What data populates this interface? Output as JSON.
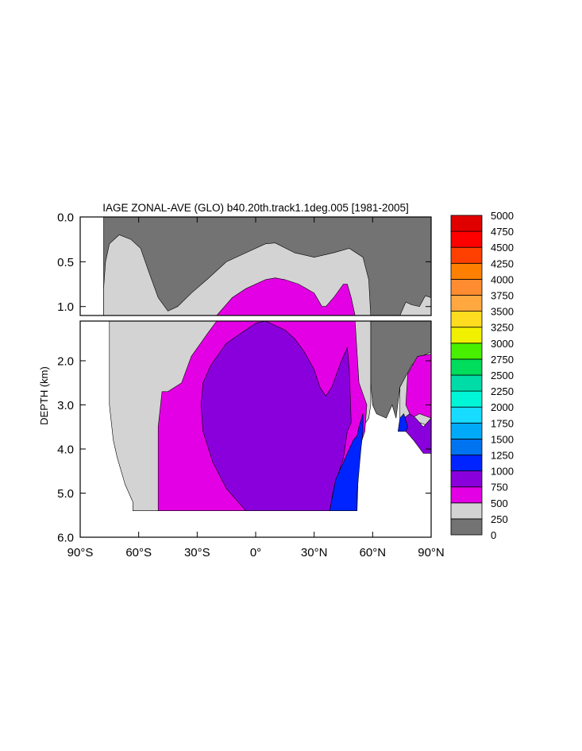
{
  "chart_data": {
    "type": "heatmap",
    "title": "IAGE ZONAL-AVE (GLO) b40.20th.track1.1deg.005 [1981-2005]",
    "ylabel": "DEPTH (km)",
    "xlabel": "",
    "xlim": [
      -90,
      90
    ],
    "ylim_upper_panel": [
      0.0,
      1.1
    ],
    "ylim_lower_panel": [
      1.1,
      6.0
    ],
    "x_ticks": [
      {
        "value": -90,
        "label": "90°S"
      },
      {
        "value": -60,
        "label": "60°S"
      },
      {
        "value": -30,
        "label": "30°S"
      },
      {
        "value": 0,
        "label": "0°"
      },
      {
        "value": 30,
        "label": "30°N"
      },
      {
        "value": 60,
        "label": "60°N"
      },
      {
        "value": 90,
        "label": "90°N"
      }
    ],
    "y_ticks_upper": [
      {
        "value": 0.0,
        "label": "0.0"
      },
      {
        "value": 0.5,
        "label": "0.5"
      },
      {
        "value": 1.0,
        "label": "1.0"
      }
    ],
    "y_ticks_lower": [
      {
        "value": 2.0,
        "label": "2.0"
      },
      {
        "value": 3.0,
        "label": "3.0"
      },
      {
        "value": 4.0,
        "label": "4.0"
      },
      {
        "value": 5.0,
        "label": "5.0"
      },
      {
        "value": 6.0,
        "label": "6.0"
      }
    ],
    "colorbar": {
      "levels": [
        "0",
        "250",
        "500",
        "750",
        "1000",
        "1250",
        "1500",
        "1750",
        "2000",
        "2250",
        "2500",
        "2750",
        "3000",
        "3250",
        "3500",
        "3750",
        "4000",
        "4250",
        "4500",
        "4750",
        "5000"
      ],
      "colors": [
        "#737373",
        "#d3d3d3",
        "#e400e4",
        "#8a00dc",
        "#0024ff",
        "#0074f0",
        "#00aaf8",
        "#18dcff",
        "#00f6d6",
        "#00dca8",
        "#00dc5c",
        "#48f000",
        "#f0f000",
        "#ffdc20",
        "#ffa840",
        "#ff8c30",
        "#ff8000",
        "#ff4000",
        "#ff0000",
        "#e00000"
      ]
    },
    "regions_upper": [
      {
        "min": 0,
        "color_index": 0,
        "points": [
          [
            -78,
            0
          ],
          [
            90,
            0
          ],
          [
            90,
            1.1
          ],
          [
            -78,
            1.1
          ]
        ]
      },
      {
        "min": 250,
        "color_index": 1,
        "points": [
          [
            -78,
            0.8
          ],
          [
            -77,
            0.5
          ],
          [
            -75,
            0.3
          ],
          [
            -70,
            0.2
          ],
          [
            -64,
            0.25
          ],
          [
            -59,
            0.35
          ],
          [
            -55,
            0.6
          ],
          [
            -50,
            0.9
          ],
          [
            -45,
            1.05
          ],
          [
            -40,
            1.0
          ],
          [
            -33,
            0.85
          ],
          [
            -25,
            0.7
          ],
          [
            -15,
            0.5
          ],
          [
            -5,
            0.4
          ],
          [
            5,
            0.3
          ],
          [
            10,
            0.29
          ],
          [
            20,
            0.4
          ],
          [
            30,
            0.45
          ],
          [
            40,
            0.4
          ],
          [
            48,
            0.35
          ],
          [
            55,
            0.45
          ],
          [
            58,
            0.7
          ],
          [
            59,
            1.1
          ],
          [
            -78,
            1.1
          ]
        ]
      },
      {
        "min": 250,
        "color_index": 1,
        "points": [
          [
            74,
            1.1
          ],
          [
            77,
            0.95
          ],
          [
            80,
            0.98
          ],
          [
            84,
            1.0
          ],
          [
            87,
            0.88
          ],
          [
            90,
            0.9
          ],
          [
            90,
            1.1
          ]
        ]
      },
      {
        "min": 500,
        "color_index": 2,
        "points": [
          [
            -20,
            1.1
          ],
          [
            -12,
            0.9
          ],
          [
            -5,
            0.8
          ],
          [
            5,
            0.7
          ],
          [
            10,
            0.68
          ],
          [
            15,
            0.7
          ],
          [
            22,
            0.75
          ],
          [
            30,
            0.85
          ],
          [
            34,
            1.0
          ],
          [
            36,
            1.0
          ],
          [
            40,
            0.9
          ],
          [
            45,
            0.75
          ],
          [
            47,
            0.75
          ],
          [
            49,
            0.9
          ],
          [
            51,
            1.1
          ]
        ]
      }
    ],
    "regions_lower": [
      {
        "min": 0,
        "color_index": 0,
        "points": [
          [
            59,
            1.1
          ],
          [
            90,
            1.1
          ],
          [
            90,
            2.0
          ],
          [
            85,
            2.0
          ],
          [
            80,
            2.3
          ],
          [
            74,
            2.6
          ],
          [
            72,
            3.3
          ],
          [
            70,
            3.0
          ],
          [
            67,
            3.3
          ],
          [
            62,
            3.2
          ],
          [
            60,
            3.0
          ],
          [
            59,
            2.5
          ]
        ]
      },
      {
        "min": 250,
        "color_index": 1,
        "points": [
          [
            -75,
            1.1
          ],
          [
            59,
            1.1
          ],
          [
            59,
            3.0
          ],
          [
            58,
            3.3
          ],
          [
            55,
            3.5
          ],
          [
            52,
            4.0
          ],
          [
            52,
            5.4
          ],
          [
            -63,
            5.4
          ],
          [
            -63,
            5.2
          ],
          [
            -65,
            5.0
          ],
          [
            -67,
            4.8
          ],
          [
            -69,
            4.5
          ],
          [
            -71,
            4.2
          ],
          [
            -73,
            3.8
          ],
          [
            -75,
            3.0
          ]
        ]
      },
      {
        "min": 250,
        "color_index": 1,
        "points": [
          [
            74,
            2.6
          ],
          [
            80,
            2.1
          ],
          [
            85,
            1.9
          ],
          [
            90,
            1.8
          ],
          [
            90,
            3.5
          ],
          [
            84,
            3.4
          ],
          [
            78,
            3.5
          ],
          [
            74,
            3.3
          ]
        ]
      },
      {
        "min": 500,
        "color_index": 2,
        "points": [
          [
            -50,
            5.4
          ],
          [
            -50,
            3.5
          ],
          [
            -48,
            2.7
          ],
          [
            -45,
            2.7
          ],
          [
            -38,
            2.5
          ],
          [
            -33,
            1.9
          ],
          [
            -25,
            1.4
          ],
          [
            -20,
            1.1
          ],
          [
            51,
            1.1
          ],
          [
            53,
            2.5
          ],
          [
            57,
            3.0
          ],
          [
            56,
            3.6
          ],
          [
            53,
            4.0
          ],
          [
            52,
            5.4
          ]
        ]
      },
      {
        "min": 500,
        "color_index": 2,
        "points": [
          [
            78,
            2.3
          ],
          [
            83,
            1.9
          ],
          [
            90,
            1.85
          ],
          [
            90,
            3.3
          ],
          [
            84,
            3.2
          ],
          [
            80,
            3.3
          ],
          [
            77,
            3.0
          ]
        ]
      },
      {
        "min": 750,
        "color_index": 3,
        "points": [
          [
            -27,
            2.5
          ],
          [
            -23,
            2.1
          ],
          [
            -15,
            1.6
          ],
          [
            -5,
            1.3
          ],
          [
            0,
            1.15
          ],
          [
            5,
            1.1
          ],
          [
            10,
            1.2
          ],
          [
            15,
            1.3
          ],
          [
            20,
            1.5
          ],
          [
            25,
            1.8
          ],
          [
            30,
            2.2
          ],
          [
            33,
            2.6
          ],
          [
            36,
            2.8
          ],
          [
            39,
            2.6
          ],
          [
            44,
            2.0
          ],
          [
            47,
            1.7
          ],
          [
            48,
            2.2
          ],
          [
            49,
            3.4
          ],
          [
            47,
            3.6
          ],
          [
            45,
            4.2
          ],
          [
            40,
            4.9
          ],
          [
            38,
            5.4
          ],
          [
            -5,
            5.4
          ],
          [
            -15,
            4.9
          ],
          [
            -22,
            4.3
          ],
          [
            -27,
            3.6
          ],
          [
            -28,
            3.0
          ]
        ]
      },
      {
        "min": 750,
        "color_index": 3,
        "points": [
          [
            76,
            3.3
          ],
          [
            79,
            3.2
          ],
          [
            82,
            3.3
          ],
          [
            86,
            3.5
          ],
          [
            90,
            3.3
          ],
          [
            90,
            4.1
          ],
          [
            86,
            4.1
          ],
          [
            81,
            3.8
          ],
          [
            77,
            3.6
          ]
        ]
      },
      {
        "min": 1000,
        "color_index": 4,
        "points": [
          [
            38,
            5.4
          ],
          [
            41,
            4.7
          ],
          [
            45,
            4.3
          ],
          [
            48,
            4.0
          ],
          [
            50,
            3.8
          ],
          [
            52,
            3.7
          ],
          [
            53,
            3.5
          ],
          [
            55,
            3.2
          ],
          [
            55,
            3.6
          ],
          [
            54,
            4.0
          ],
          [
            53,
            4.5
          ],
          [
            52,
            5.0
          ],
          [
            52,
            5.4
          ]
        ]
      },
      {
        "min": 1000,
        "color_index": 4,
        "points": [
          [
            73,
            3.6
          ],
          [
            74,
            3.3
          ],
          [
            76,
            3.2
          ],
          [
            78,
            3.5
          ],
          [
            77,
            3.6
          ]
        ]
      }
    ]
  }
}
